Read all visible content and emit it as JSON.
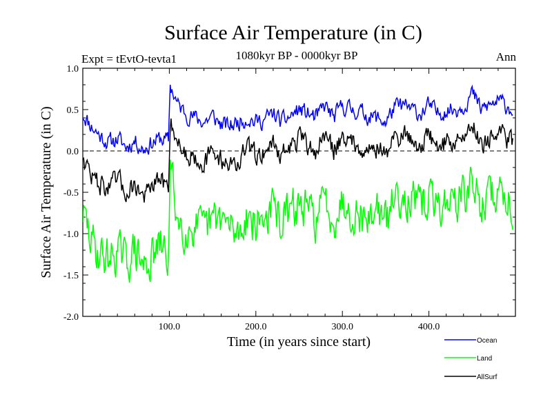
{
  "chart_data": {
    "type": "line",
    "title": "Surface Air Temperature (in C)",
    "experiment_label": "Expt = tEvtO-tevta1",
    "period_label": "1080kyr BP - 0000kyr BP",
    "season_label": "Ann",
    "xlabel": "Time (in years since start)",
    "ylabel": "Surface Air Temperature (in C)",
    "xlim": [
      0,
      500
    ],
    "ylim": [
      -2.0,
      1.0
    ],
    "x_ticks": [
      {
        "value": 100,
        "label": "100.0"
      },
      {
        "value": 200,
        "label": "200.0"
      },
      {
        "value": 300,
        "label": "300.0"
      },
      {
        "value": 400,
        "label": "400.0"
      }
    ],
    "y_ticks": [
      {
        "value": 1.0,
        "label": "1.0"
      },
      {
        "value": 0.5,
        "label": "0.5"
      },
      {
        "value": 0.0,
        "label": "0.0"
      },
      {
        "value": -0.5,
        "label": "-0.5"
      },
      {
        "value": -1.0,
        "label": "-1.0"
      },
      {
        "value": -1.5,
        "label": "-1.5"
      },
      {
        "value": -2.0,
        "label": "-2.0"
      }
    ],
    "reference_line": {
      "y": 0.0,
      "style": "dashed"
    },
    "legend": {
      "placement": "bottom-right"
    },
    "series": [
      {
        "name": "Ocean",
        "color": "#0000ff",
        "x": [
          0,
          10,
          20,
          30,
          40,
          50,
          60,
          70,
          80,
          90,
          99,
          101,
          110,
          120,
          130,
          140,
          150,
          160,
          170,
          180,
          190,
          200,
          210,
          220,
          230,
          240,
          250,
          260,
          270,
          280,
          290,
          300,
          310,
          320,
          330,
          340,
          350,
          360,
          370,
          380,
          390,
          400,
          410,
          420,
          430,
          440,
          450,
          460,
          470,
          480,
          490,
          497
        ],
        "values": [
          0.45,
          0.3,
          0.18,
          0.1,
          0.15,
          0.05,
          0.12,
          0.02,
          0.1,
          0.15,
          0.12,
          0.8,
          0.55,
          0.45,
          0.4,
          0.35,
          0.42,
          0.32,
          0.3,
          0.35,
          0.4,
          0.35,
          0.38,
          0.45,
          0.35,
          0.42,
          0.5,
          0.45,
          0.4,
          0.55,
          0.4,
          0.55,
          0.5,
          0.48,
          0.42,
          0.4,
          0.35,
          0.52,
          0.55,
          0.5,
          0.45,
          0.55,
          0.45,
          0.5,
          0.5,
          0.55,
          0.7,
          0.5,
          0.55,
          0.6,
          0.55,
          0.5
        ]
      },
      {
        "name": "Land",
        "color": "#00ff00",
        "x": [
          0,
          10,
          20,
          30,
          40,
          50,
          60,
          70,
          80,
          90,
          99,
          101,
          110,
          120,
          130,
          140,
          150,
          160,
          170,
          180,
          190,
          200,
          210,
          220,
          230,
          240,
          250,
          260,
          270,
          280,
          290,
          300,
          310,
          320,
          330,
          340,
          350,
          360,
          370,
          380,
          390,
          400,
          410,
          420,
          430,
          440,
          450,
          460,
          470,
          480,
          490,
          497
        ],
        "values": [
          -0.75,
          -1.1,
          -1.25,
          -1.3,
          -1.2,
          -1.35,
          -1.2,
          -1.4,
          -1.3,
          -1.15,
          -1.3,
          -0.2,
          -0.85,
          -0.95,
          -0.9,
          -1.0,
          -0.85,
          -0.8,
          -0.95,
          -1.0,
          -0.75,
          -0.9,
          -0.8,
          -0.7,
          -0.85,
          -0.75,
          -0.65,
          -0.75,
          -0.8,
          -0.6,
          -0.8,
          -0.6,
          -0.7,
          -0.75,
          -0.85,
          -0.65,
          -0.9,
          -0.55,
          -0.5,
          -0.6,
          -0.7,
          -0.55,
          -0.7,
          -0.6,
          -0.6,
          -0.55,
          -0.4,
          -0.65,
          -0.55,
          -0.5,
          -0.55,
          -0.65
        ]
      },
      {
        "name": "AllSurf",
        "color": "#000000",
        "x": [
          0,
          10,
          20,
          30,
          40,
          50,
          60,
          70,
          80,
          90,
          99,
          101,
          110,
          120,
          130,
          140,
          150,
          160,
          170,
          180,
          190,
          200,
          210,
          220,
          230,
          240,
          250,
          260,
          270,
          280,
          290,
          300,
          310,
          320,
          330,
          340,
          350,
          360,
          370,
          380,
          390,
          400,
          410,
          420,
          430,
          440,
          450,
          460,
          470,
          480,
          490,
          497
        ],
        "values": [
          -0.05,
          -0.3,
          -0.4,
          -0.45,
          -0.35,
          -0.5,
          -0.4,
          -0.55,
          -0.45,
          -0.35,
          -0.45,
          0.4,
          0.1,
          -0.05,
          -0.05,
          -0.15,
          -0.02,
          -0.1,
          -0.15,
          -0.15,
          0.05,
          -0.05,
          0.0,
          0.1,
          -0.05,
          0.05,
          0.15,
          0.05,
          0.0,
          0.2,
          0.0,
          0.2,
          0.1,
          0.08,
          0.0,
          0.05,
          -0.05,
          0.15,
          0.2,
          0.15,
          0.05,
          0.2,
          0.05,
          0.1,
          0.12,
          0.15,
          0.35,
          0.1,
          0.15,
          0.2,
          0.15,
          0.1
        ]
      }
    ]
  }
}
